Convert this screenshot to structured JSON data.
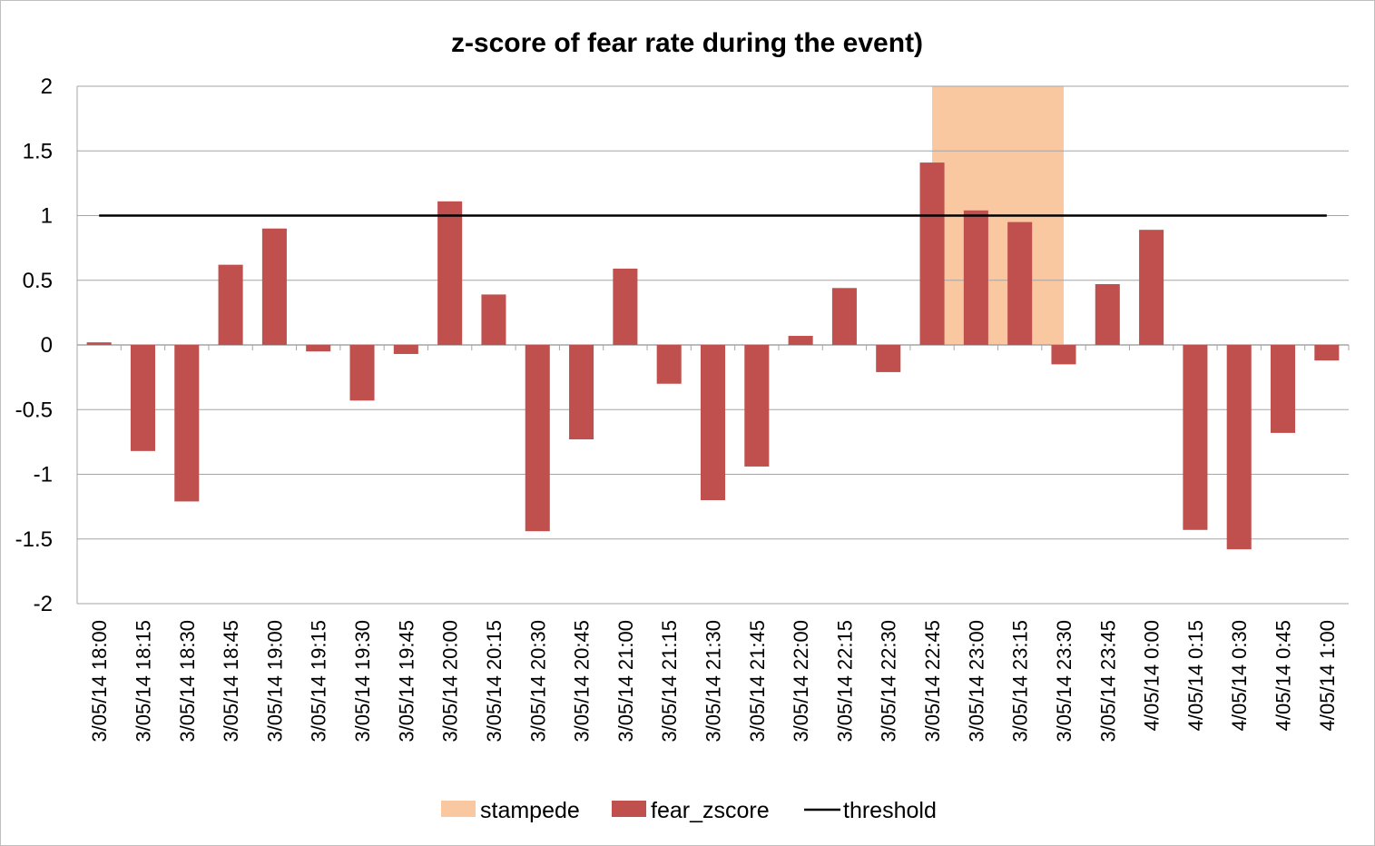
{
  "chart_data": {
    "type": "bar",
    "title": "z-score of fear rate during the event)",
    "xlabel": "",
    "ylabel": "",
    "ylim": [
      -2,
      2
    ],
    "yticks": [
      "2",
      "1.5",
      "1",
      "0.5",
      "0",
      "-0.5",
      "-1",
      "-1.5",
      "-2"
    ],
    "grid": true,
    "legend_position": "bottom",
    "categories": [
      "3/05/14 18:00",
      "3/05/14 18:15",
      "3/05/14 18:30",
      "3/05/14 18:45",
      "3/05/14 19:00",
      "3/05/14 19:15",
      "3/05/14 19:30",
      "3/05/14 19:45",
      "3/05/14 20:00",
      "3/05/14 20:15",
      "3/05/14 20:30",
      "3/05/14 20:45",
      "3/05/14 21:00",
      "3/05/14 21:15",
      "3/05/14 21:30",
      "3/05/14 21:45",
      "3/05/14 22:00",
      "3/05/14 22:15",
      "3/05/14 22:30",
      "3/05/14 22:45",
      "3/05/14 23:00",
      "3/05/14 23:15",
      "3/05/14 23:30",
      "3/05/14 23:45",
      "4/05/14 0:00",
      "4/05/14 0:15",
      "4/05/14 0:30",
      "4/05/14 0:45",
      "4/05/14 1:00"
    ],
    "series": [
      {
        "name": "stampede",
        "type": "area",
        "color": "#f9c8a0",
        "values": [
          0,
          0,
          0,
          0,
          0,
          0,
          0,
          0,
          0,
          0,
          0,
          0,
          0,
          0,
          0,
          0,
          0,
          0,
          0,
          2,
          2,
          2,
          2,
          0,
          0,
          0,
          0,
          0,
          0
        ]
      },
      {
        "name": "fear_zscore",
        "type": "bar",
        "color": "#c0504d",
        "values": [
          0.02,
          -0.82,
          -1.21,
          0.62,
          0.9,
          -0.05,
          -0.43,
          -0.07,
          1.11,
          0.39,
          -1.44,
          -0.73,
          0.59,
          -0.3,
          -1.2,
          -0.94,
          0.07,
          0.44,
          -0.21,
          1.41,
          1.04,
          0.95,
          -0.15,
          0.47,
          0.89,
          -1.43,
          -1.58,
          -0.68,
          -0.12
        ]
      },
      {
        "name": "threshold",
        "type": "line",
        "color": "#000000",
        "values": [
          1,
          1,
          1,
          1,
          1,
          1,
          1,
          1,
          1,
          1,
          1,
          1,
          1,
          1,
          1,
          1,
          1,
          1,
          1,
          1,
          1,
          1,
          1,
          1,
          1,
          1,
          1,
          1,
          1
        ]
      }
    ]
  }
}
